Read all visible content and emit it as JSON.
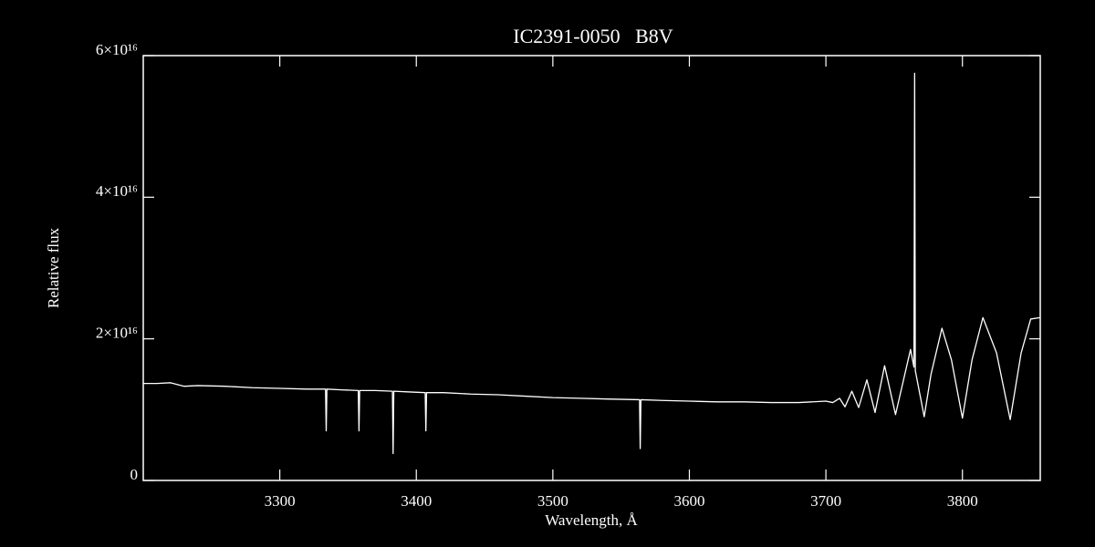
{
  "chart_data": {
    "type": "line",
    "title": "IC2391-0050   B8V",
    "x_label": "Wavelength, Å",
    "y_label": "Relative flux",
    "xlim": [
      3200,
      3857
    ],
    "ylim": [
      0,
      6e+16
    ],
    "xticks": [
      3300,
      3400,
      3500,
      3600,
      3700,
      3800
    ],
    "yticks": [
      0,
      {
        "value": 2e+16,
        "label": "2×10¹⁶"
      },
      {
        "value": 4e+16,
        "label": "4×10¹⁶"
      },
      {
        "value": 6e+16,
        "label": "6×10¹⁶"
      }
    ],
    "grid": false,
    "series": [
      {
        "color": "#ffffff",
        "x": [
          3200,
          3210,
          3220,
          3230,
          3240,
          3260,
          3280,
          3300,
          3320,
          3333.5,
          3334,
          3334.5,
          3345,
          3357.5,
          3358,
          3358.5,
          3370,
          3382.5,
          3383,
          3383.5,
          3395,
          3406.5,
          3407,
          3407.5,
          3420,
          3440,
          3460,
          3480,
          3500,
          3520,
          3540,
          3563.5,
          3564,
          3564.5,
          3580,
          3600,
          3620,
          3640,
          3660,
          3680,
          3700,
          3705,
          3710,
          3714,
          3719,
          3724,
          3730,
          3736,
          3743,
          3751,
          3762,
          3764.5,
          3765,
          3765.5,
          3772,
          3777,
          3785,
          3792,
          3800,
          3807,
          3815,
          3825,
          3835,
          3843,
          3850,
          3857
        ],
        "values": [
          1.37e+16,
          1.37e+16,
          1.38e+16,
          1.33e+16,
          1.34e+16,
          1.33e+16,
          1.31e+16,
          1.3e+16,
          1.29e+16,
          1.29e+16,
          7000000000000000.0,
          1.29e+16,
          1.28e+16,
          1.27e+16,
          7000000000000000.0,
          1.27e+16,
          1.27e+16,
          1.26e+16,
          3800000000000000.0,
          1.26e+16,
          1.25e+16,
          1.24e+16,
          7000000000000000.0,
          1.24e+16,
          1.24e+16,
          1.22e+16,
          1.21e+16,
          1.19e+16,
          1.17e+16,
          1.16e+16,
          1.15e+16,
          1.14e+16,
          4500000000000000.0,
          1.14e+16,
          1.13e+16,
          1.12e+16,
          1.11e+16,
          1.11e+16,
          1.1e+16,
          1.1e+16,
          1.12e+16,
          1.1e+16,
          1.16e+16,
          1.04e+16,
          1.26e+16,
          1.03e+16,
          1.42e+16,
          9600000000000000.0,
          1.62e+16,
          9300000000000000.0,
          1.85e+16,
          1.6e+16,
          5.75e+16,
          1.55e+16,
          9000000000000000.0,
          1.5e+16,
          2.15e+16,
          1.7e+16,
          8800000000000000.0,
          1.7e+16,
          2.3e+16,
          1.8e+16,
          8600000000000000.0,
          1.8e+16,
          2.28e+16,
          2.3e+16
        ]
      }
    ]
  }
}
